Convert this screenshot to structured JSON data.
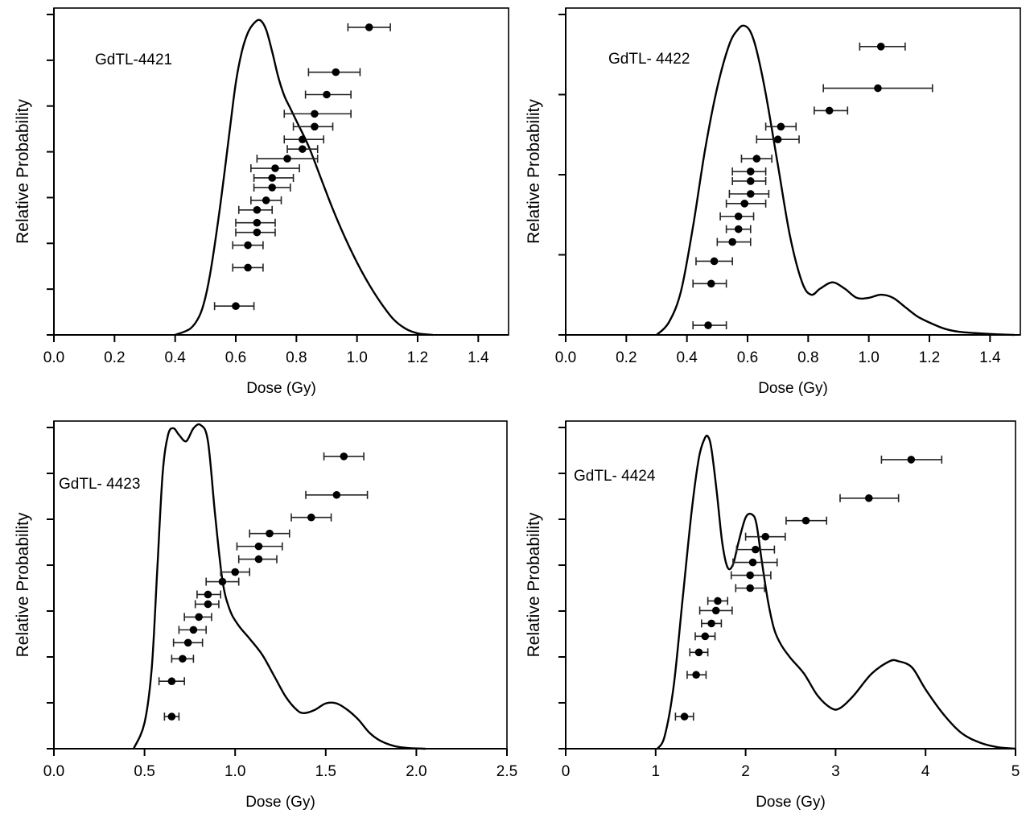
{
  "chart_data": [
    {
      "type": "line",
      "title": "GdTL-4421",
      "xlabel": "Dose (Gy)",
      "ylabel": "Relative Probability",
      "xlim": [
        0,
        1.5
      ],
      "xticks": [
        "0.0",
        "0.2",
        "0.4",
        "0.6",
        "0.8",
        "1.0",
        "1.2",
        "1.4"
      ],
      "xtick_values": [
        0,
        0.2,
        0.4,
        0.6,
        0.8,
        1.0,
        1.2,
        1.4
      ],
      "yticks_count": 7,
      "grid": false,
      "curve": {
        "x": [
          0.4,
          0.45,
          0.48,
          0.5,
          0.52,
          0.55,
          0.58,
          0.6,
          0.62,
          0.64,
          0.66,
          0.68,
          0.7,
          0.72,
          0.74,
          0.76,
          0.78,
          0.8,
          0.84,
          0.88,
          0.92,
          0.96,
          1.0,
          1.04,
          1.08,
          1.12,
          1.16,
          1.2,
          1.25
        ],
        "y": [
          0.0,
          0.02,
          0.06,
          0.12,
          0.22,
          0.42,
          0.65,
          0.8,
          0.9,
          0.96,
          0.99,
          1.0,
          0.97,
          0.9,
          0.82,
          0.76,
          0.72,
          0.68,
          0.6,
          0.5,
          0.4,
          0.31,
          0.23,
          0.16,
          0.1,
          0.05,
          0.02,
          0.005,
          0.0
        ]
      },
      "points": [
        {
          "dose": 0.6,
          "lo": 0.53,
          "hi": 0.66,
          "rank": 0.09
        },
        {
          "dose": 0.64,
          "lo": 0.59,
          "hi": 0.69,
          "rank": 0.21
        },
        {
          "dose": 0.64,
          "lo": 0.59,
          "hi": 0.69,
          "rank": 0.28
        },
        {
          "dose": 0.67,
          "lo": 0.6,
          "hi": 0.73,
          "rank": 0.32
        },
        {
          "dose": 0.67,
          "lo": 0.6,
          "hi": 0.73,
          "rank": 0.35
        },
        {
          "dose": 0.67,
          "lo": 0.61,
          "hi": 0.72,
          "rank": 0.39
        },
        {
          "dose": 0.7,
          "lo": 0.65,
          "hi": 0.75,
          "rank": 0.42
        },
        {
          "dose": 0.72,
          "lo": 0.66,
          "hi": 0.78,
          "rank": 0.46
        },
        {
          "dose": 0.72,
          "lo": 0.66,
          "hi": 0.79,
          "rank": 0.49
        },
        {
          "dose": 0.73,
          "lo": 0.65,
          "hi": 0.81,
          "rank": 0.52
        },
        {
          "dose": 0.77,
          "lo": 0.67,
          "hi": 0.87,
          "rank": 0.55
        },
        {
          "dose": 0.82,
          "lo": 0.77,
          "hi": 0.87,
          "rank": 0.58
        },
        {
          "dose": 0.82,
          "lo": 0.76,
          "hi": 0.89,
          "rank": 0.61
        },
        {
          "dose": 0.86,
          "lo": 0.79,
          "hi": 0.92,
          "rank": 0.65
        },
        {
          "dose": 0.86,
          "lo": 0.76,
          "hi": 0.98,
          "rank": 0.69
        },
        {
          "dose": 0.9,
          "lo": 0.83,
          "hi": 0.98,
          "rank": 0.75
        },
        {
          "dose": 0.93,
          "lo": 0.84,
          "hi": 1.01,
          "rank": 0.82
        },
        {
          "dose": 1.04,
          "lo": 0.97,
          "hi": 1.11,
          "rank": 0.96
        }
      ]
    },
    {
      "type": "line",
      "title": "GdTL- 4422",
      "xlabel": "Dose (Gy)",
      "ylabel": "Relative Probability",
      "xlim": [
        0,
        1.5
      ],
      "xticks": [
        "0.0",
        "0.2",
        "0.4",
        "0.6",
        "0.8",
        "1.0",
        "1.2",
        "1.4"
      ],
      "xtick_values": [
        0,
        0.2,
        0.4,
        0.6,
        0.8,
        1.0,
        1.2,
        1.4
      ],
      "yticks_count": 4,
      "grid": false,
      "curve": {
        "x": [
          0.3,
          0.34,
          0.38,
          0.42,
          0.46,
          0.5,
          0.54,
          0.57,
          0.59,
          0.61,
          0.63,
          0.66,
          0.7,
          0.74,
          0.78,
          0.81,
          0.84,
          0.88,
          0.92,
          0.96,
          1.0,
          1.04,
          1.08,
          1.12,
          1.16,
          1.2,
          1.25,
          1.3,
          1.4,
          1.48
        ],
        "y": [
          0.0,
          0.04,
          0.14,
          0.35,
          0.6,
          0.8,
          0.94,
          0.99,
          1.0,
          0.98,
          0.92,
          0.78,
          0.55,
          0.32,
          0.17,
          0.13,
          0.15,
          0.17,
          0.15,
          0.12,
          0.12,
          0.13,
          0.12,
          0.09,
          0.06,
          0.04,
          0.02,
          0.01,
          0.003,
          0.0
        ]
      },
      "points": [
        {
          "dose": 0.47,
          "lo": 0.42,
          "hi": 0.53,
          "rank": 0.03
        },
        {
          "dose": 0.48,
          "lo": 0.42,
          "hi": 0.53,
          "rank": 0.16
        },
        {
          "dose": 0.49,
          "lo": 0.43,
          "hi": 0.55,
          "rank": 0.23
        },
        {
          "dose": 0.55,
          "lo": 0.5,
          "hi": 0.61,
          "rank": 0.29
        },
        {
          "dose": 0.57,
          "lo": 0.53,
          "hi": 0.61,
          "rank": 0.33
        },
        {
          "dose": 0.57,
          "lo": 0.51,
          "hi": 0.62,
          "rank": 0.37
        },
        {
          "dose": 0.59,
          "lo": 0.53,
          "hi": 0.66,
          "rank": 0.41
        },
        {
          "dose": 0.61,
          "lo": 0.54,
          "hi": 0.67,
          "rank": 0.44
        },
        {
          "dose": 0.61,
          "lo": 0.55,
          "hi": 0.66,
          "rank": 0.48
        },
        {
          "dose": 0.61,
          "lo": 0.55,
          "hi": 0.66,
          "rank": 0.51
        },
        {
          "dose": 0.63,
          "lo": 0.58,
          "hi": 0.68,
          "rank": 0.55
        },
        {
          "dose": 0.7,
          "lo": 0.63,
          "hi": 0.77,
          "rank": 0.61
        },
        {
          "dose": 0.71,
          "lo": 0.66,
          "hi": 0.76,
          "rank": 0.65
        },
        {
          "dose": 0.87,
          "lo": 0.82,
          "hi": 0.93,
          "rank": 0.7
        },
        {
          "dose": 1.03,
          "lo": 0.85,
          "hi": 1.21,
          "rank": 0.77
        },
        {
          "dose": 1.04,
          "lo": 0.97,
          "hi": 1.12,
          "rank": 0.9
        }
      ]
    },
    {
      "type": "line",
      "title": "GdTL- 4423",
      "xlabel": "Dose (Gy)",
      "ylabel": "Relative Probability",
      "xlim": [
        0,
        2.5
      ],
      "xticks": [
        "0.0",
        "0.5",
        "1.0",
        "1.5",
        "2.0",
        "2.5"
      ],
      "xtick_values": [
        0,
        0.5,
        1.0,
        1.5,
        2.0,
        2.5
      ],
      "yticks_count": 7,
      "grid": false,
      "curve": {
        "x": [
          0.44,
          0.5,
          0.54,
          0.57,
          0.6,
          0.63,
          0.66,
          0.69,
          0.73,
          0.77,
          0.81,
          0.85,
          0.89,
          0.93,
          0.97,
          1.02,
          1.08,
          1.15,
          1.22,
          1.28,
          1.34,
          1.38,
          1.44,
          1.5,
          1.56,
          1.62,
          1.68,
          1.74,
          1.8,
          1.88,
          1.96,
          2.05
        ],
        "y": [
          0.0,
          0.08,
          0.25,
          0.55,
          0.85,
          0.97,
          0.99,
          0.97,
          0.95,
          0.99,
          1.0,
          0.95,
          0.72,
          0.52,
          0.43,
          0.38,
          0.34,
          0.29,
          0.22,
          0.16,
          0.12,
          0.11,
          0.12,
          0.14,
          0.14,
          0.12,
          0.09,
          0.05,
          0.025,
          0.008,
          0.002,
          0.0
        ]
      },
      "points": [
        {
          "dose": 0.65,
          "lo": 0.61,
          "hi": 0.69,
          "rank": 0.1
        },
        {
          "dose": 0.65,
          "lo": 0.58,
          "hi": 0.72,
          "rank": 0.21
        },
        {
          "dose": 0.71,
          "lo": 0.65,
          "hi": 0.77,
          "rank": 0.28
        },
        {
          "dose": 0.74,
          "lo": 0.66,
          "hi": 0.82,
          "rank": 0.33
        },
        {
          "dose": 0.77,
          "lo": 0.69,
          "hi": 0.84,
          "rank": 0.37
        },
        {
          "dose": 0.8,
          "lo": 0.72,
          "hi": 0.87,
          "rank": 0.41
        },
        {
          "dose": 0.85,
          "lo": 0.78,
          "hi": 0.91,
          "rank": 0.45
        },
        {
          "dose": 0.85,
          "lo": 0.79,
          "hi": 0.92,
          "rank": 0.48
        },
        {
          "dose": 0.93,
          "lo": 0.84,
          "hi": 1.02,
          "rank": 0.52
        },
        {
          "dose": 1.0,
          "lo": 0.92,
          "hi": 1.08,
          "rank": 0.55
        },
        {
          "dose": 1.13,
          "lo": 1.02,
          "hi": 1.23,
          "rank": 0.59
        },
        {
          "dose": 1.13,
          "lo": 1.01,
          "hi": 1.26,
          "rank": 0.63
        },
        {
          "dose": 1.19,
          "lo": 1.08,
          "hi": 1.3,
          "rank": 0.67
        },
        {
          "dose": 1.42,
          "lo": 1.31,
          "hi": 1.53,
          "rank": 0.72
        },
        {
          "dose": 1.56,
          "lo": 1.39,
          "hi": 1.73,
          "rank": 0.79
        },
        {
          "dose": 1.6,
          "lo": 1.49,
          "hi": 1.71,
          "rank": 0.91
        }
      ]
    },
    {
      "type": "line",
      "title": "GdTL- 4424",
      "xlabel": "Dose (Gy)",
      "ylabel": "Relative Probability",
      "xlim": [
        0,
        5
      ],
      "xticks": [
        "0",
        "1",
        "2",
        "3",
        "4",
        "5"
      ],
      "xtick_values": [
        0,
        1,
        2,
        3,
        4,
        5
      ],
      "yticks_count": 7,
      "grid": false,
      "curve": {
        "x": [
          1.02,
          1.1,
          1.2,
          1.3,
          1.4,
          1.48,
          1.54,
          1.58,
          1.62,
          1.68,
          1.74,
          1.8,
          1.86,
          1.92,
          2.0,
          2.07,
          2.12,
          2.18,
          2.25,
          2.32,
          2.4,
          2.5,
          2.65,
          2.8,
          2.95,
          3.05,
          3.2,
          3.4,
          3.6,
          3.7,
          3.85,
          4.0,
          4.2,
          4.4,
          4.6,
          4.8,
          5.0
        ],
        "y": [
          0.0,
          0.04,
          0.2,
          0.48,
          0.76,
          0.93,
          0.99,
          1.0,
          0.96,
          0.82,
          0.66,
          0.58,
          0.59,
          0.66,
          0.74,
          0.75,
          0.72,
          0.6,
          0.47,
          0.38,
          0.33,
          0.29,
          0.24,
          0.17,
          0.13,
          0.13,
          0.17,
          0.24,
          0.28,
          0.28,
          0.26,
          0.19,
          0.11,
          0.05,
          0.02,
          0.005,
          0.0
        ]
      },
      "points": [
        {
          "dose": 1.32,
          "lo": 1.22,
          "hi": 1.42,
          "rank": 0.1
        },
        {
          "dose": 1.45,
          "lo": 1.35,
          "hi": 1.56,
          "rank": 0.23
        },
        {
          "dose": 1.48,
          "lo": 1.38,
          "hi": 1.58,
          "rank": 0.3
        },
        {
          "dose": 1.55,
          "lo": 1.44,
          "hi": 1.66,
          "rank": 0.35
        },
        {
          "dose": 1.62,
          "lo": 1.51,
          "hi": 1.73,
          "rank": 0.39
        },
        {
          "dose": 1.67,
          "lo": 1.49,
          "hi": 1.85,
          "rank": 0.43
        },
        {
          "dose": 1.69,
          "lo": 1.58,
          "hi": 1.8,
          "rank": 0.46
        },
        {
          "dose": 2.05,
          "lo": 1.89,
          "hi": 2.21,
          "rank": 0.5
        },
        {
          "dose": 2.05,
          "lo": 1.84,
          "hi": 2.28,
          "rank": 0.54
        },
        {
          "dose": 2.08,
          "lo": 1.86,
          "hi": 2.35,
          "rank": 0.58
        },
        {
          "dose": 2.11,
          "lo": 1.9,
          "hi": 2.32,
          "rank": 0.62
        },
        {
          "dose": 2.22,
          "lo": 2.0,
          "hi": 2.44,
          "rank": 0.66
        },
        {
          "dose": 2.67,
          "lo": 2.45,
          "hi": 2.9,
          "rank": 0.71
        },
        {
          "dose": 3.37,
          "lo": 3.05,
          "hi": 3.7,
          "rank": 0.78
        },
        {
          "dose": 3.84,
          "lo": 3.51,
          "hi": 4.18,
          "rank": 0.9
        }
      ]
    }
  ]
}
